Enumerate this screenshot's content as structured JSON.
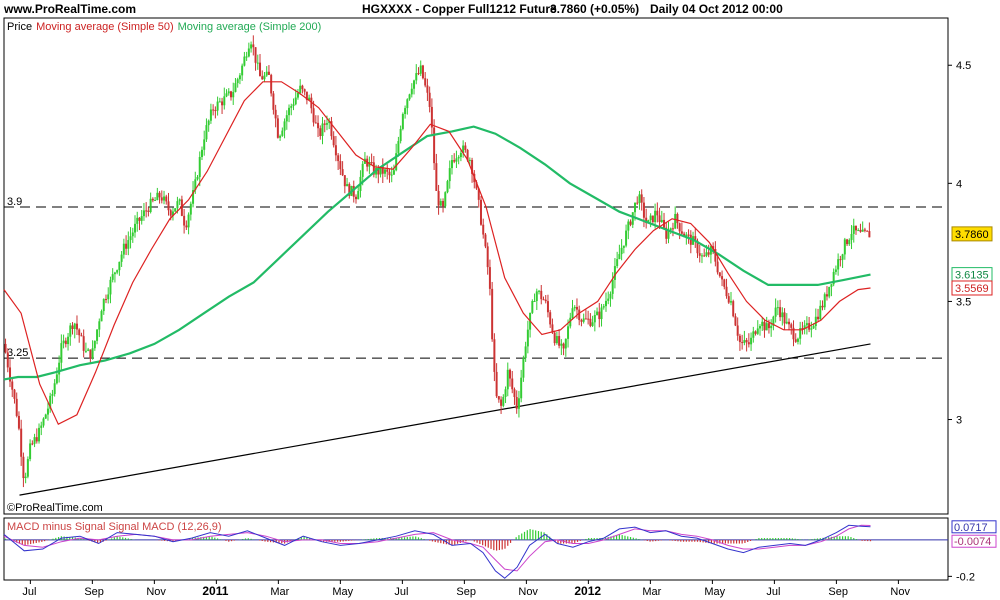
{
  "header": {
    "site": "www.ProRealTime.com",
    "title": "HGXXXX - Copper Full1212 Future",
    "quote": "3.7860 (+0.05%)",
    "period": "Daily  04 Oct 2012 00:00"
  },
  "legend": {
    "price": "Price",
    "ma50": "Moving average (Simple 50)",
    "ma200": "Moving average (Simple 200)"
  },
  "watermark": "©ProRealTime.com",
  "macd_legend": "MACD minus Signal Signal MACD (12,26,9)",
  "colors": {
    "candle_up": "#33cc33",
    "candle_down": "#cc3333",
    "ma50": "#dd2222",
    "ma200": "#22bb66",
    "macd": "#3333cc",
    "signal": "#cc44cc",
    "price_tag": "#ffdd00"
  },
  "chart_data": [
    {
      "type": "candlestick",
      "title": "HGXXXX - Copper Full1212 Future",
      "y_ticks": [
        "3",
        "3.5",
        "4",
        "4.5"
      ],
      "y_tick_values": [
        3,
        3.5,
        4,
        4.5
      ],
      "ylim": [
        2.6,
        4.7
      ],
      "x_ticks": [
        "Jul",
        "Sep",
        "Nov",
        "2011",
        "Mar",
        "May",
        "Jul",
        "Sep",
        "Nov",
        "2012",
        "Mar",
        "May",
        "Jul",
        "Sep",
        "Nov"
      ],
      "x_tick_months": [
        0,
        2,
        4,
        6,
        8,
        10,
        12,
        14,
        16,
        18,
        20,
        22,
        24,
        26,
        28
      ],
      "x_range_months": [
        -0.85,
        29.6
      ],
      "horizontal_lines": [
        {
          "label": "3.9",
          "value": 3.9
        },
        {
          "label": "3.25",
          "value": 3.26
        }
      ],
      "trendlines": [
        {
          "from": [
            -0.35,
            2.68
          ],
          "to": [
            27.1,
            3.32
          ]
        }
      ],
      "last_price": "3.7860",
      "last_price_value": 3.786,
      "ma200_last": "3.6135",
      "ma200_last_value": 3.6135,
      "ma50_last": "3.5569",
      "ma50_last_value": 3.5569,
      "close_path": [
        [
          -0.85,
          3.32
        ],
        [
          -0.4,
          3.0
        ],
        [
          -0.2,
          2.74
        ],
        [
          0.0,
          2.88
        ],
        [
          0.3,
          2.95
        ],
        [
          0.7,
          3.1
        ],
        [
          1.0,
          3.3
        ],
        [
          1.4,
          3.42
        ],
        [
          1.8,
          3.28
        ],
        [
          2.0,
          3.28
        ],
        [
          2.3,
          3.48
        ],
        [
          2.7,
          3.62
        ],
        [
          3.0,
          3.72
        ],
        [
          3.4,
          3.82
        ],
        [
          3.8,
          3.9
        ],
        [
          4.2,
          3.95
        ],
        [
          4.5,
          3.88
        ],
        [
          4.8,
          3.92
        ],
        [
          5.0,
          3.82
        ],
        [
          5.3,
          3.98
        ],
        [
          5.6,
          4.2
        ],
        [
          5.9,
          4.32
        ],
        [
          6.2,
          4.35
        ],
        [
          6.5,
          4.38
        ],
        [
          6.8,
          4.48
        ],
        [
          7.1,
          4.62
        ],
        [
          7.4,
          4.45
        ],
        [
          7.7,
          4.45
        ],
        [
          8.0,
          4.2
        ],
        [
          8.3,
          4.3
        ],
        [
          8.7,
          4.4
        ],
        [
          9.0,
          4.35
        ],
        [
          9.3,
          4.2
        ],
        [
          9.6,
          4.28
        ],
        [
          9.9,
          4.12
        ],
        [
          10.2,
          3.98
        ],
        [
          10.5,
          3.95
        ],
        [
          10.8,
          4.1
        ],
        [
          11.1,
          4.05
        ],
        [
          11.4,
          4.05
        ],
        [
          11.7,
          4.02
        ],
        [
          12.0,
          4.3
        ],
        [
          12.3,
          4.42
        ],
        [
          12.6,
          4.48
        ],
        [
          12.9,
          4.32
        ],
        [
          13.1,
          3.95
        ],
        [
          13.3,
          3.88
        ],
        [
          13.6,
          4.1
        ],
        [
          13.9,
          4.15
        ],
        [
          14.2,
          4.1
        ],
        [
          14.5,
          3.88
        ],
        [
          14.8,
          3.6
        ],
        [
          15.0,
          3.1
        ],
        [
          15.2,
          3.05
        ],
        [
          15.4,
          3.2
        ],
        [
          15.7,
          3.05
        ],
        [
          16.0,
          3.35
        ],
        [
          16.3,
          3.55
        ],
        [
          16.6,
          3.5
        ],
        [
          16.9,
          3.35
        ],
        [
          17.2,
          3.28
        ],
        [
          17.5,
          3.5
        ],
        [
          17.8,
          3.42
        ],
        [
          18.1,
          3.42
        ],
        [
          18.4,
          3.45
        ],
        [
          18.7,
          3.55
        ],
        [
          19.0,
          3.7
        ],
        [
          19.3,
          3.82
        ],
        [
          19.6,
          3.95
        ],
        [
          19.9,
          3.82
        ],
        [
          20.2,
          3.88
        ],
        [
          20.5,
          3.78
        ],
        [
          20.8,
          3.85
        ],
        [
          21.1,
          3.78
        ],
        [
          21.4,
          3.75
        ],
        [
          21.7,
          3.68
        ],
        [
          22.0,
          3.72
        ],
        [
          22.3,
          3.58
        ],
        [
          22.6,
          3.5
        ],
        [
          22.9,
          3.32
        ],
        [
          23.2,
          3.32
        ],
        [
          23.5,
          3.42
        ],
        [
          23.8,
          3.38
        ],
        [
          24.1,
          3.48
        ],
        [
          24.4,
          3.4
        ],
        [
          24.7,
          3.35
        ],
        [
          25.0,
          3.38
        ],
        [
          25.3,
          3.42
        ],
        [
          25.6,
          3.5
        ],
        [
          25.9,
          3.62
        ],
        [
          26.2,
          3.72
        ],
        [
          26.5,
          3.8
        ],
        [
          26.8,
          3.78
        ],
        [
          27.1,
          3.786
        ]
      ],
      "ma50_path": [
        [
          -0.85,
          3.55
        ],
        [
          -0.3,
          3.45
        ],
        [
          0.3,
          3.15
        ],
        [
          0.9,
          2.98
        ],
        [
          1.5,
          3.02
        ],
        [
          2.1,
          3.2
        ],
        [
          2.7,
          3.4
        ],
        [
          3.3,
          3.58
        ],
        [
          3.9,
          3.72
        ],
        [
          4.5,
          3.85
        ],
        [
          5.1,
          3.93
        ],
        [
          5.7,
          4.05
        ],
        [
          6.3,
          4.2
        ],
        [
          6.9,
          4.35
        ],
        [
          7.5,
          4.43
        ],
        [
          8.1,
          4.43
        ],
        [
          8.7,
          4.38
        ],
        [
          9.3,
          4.32
        ],
        [
          9.9,
          4.22
        ],
        [
          10.5,
          4.12
        ],
        [
          11.1,
          4.07
        ],
        [
          11.7,
          4.06
        ],
        [
          12.3,
          4.15
        ],
        [
          12.9,
          4.25
        ],
        [
          13.5,
          4.22
        ],
        [
          14.1,
          4.1
        ],
        [
          14.7,
          3.9
        ],
        [
          15.3,
          3.6
        ],
        [
          15.9,
          3.45
        ],
        [
          16.5,
          3.36
        ],
        [
          17.1,
          3.38
        ],
        [
          17.7,
          3.45
        ],
        [
          18.3,
          3.5
        ],
        [
          18.9,
          3.62
        ],
        [
          19.5,
          3.72
        ],
        [
          20.1,
          3.8
        ],
        [
          20.7,
          3.85
        ],
        [
          21.3,
          3.83
        ],
        [
          21.9,
          3.75
        ],
        [
          22.5,
          3.62
        ],
        [
          23.1,
          3.5
        ],
        [
          23.7,
          3.42
        ],
        [
          24.3,
          3.38
        ],
        [
          24.9,
          3.38
        ],
        [
          25.5,
          3.42
        ],
        [
          26.1,
          3.5
        ],
        [
          26.7,
          3.55
        ],
        [
          27.1,
          3.5569
        ]
      ],
      "ma200_path": [
        [
          -0.85,
          3.17
        ],
        [
          -0.4,
          3.18
        ],
        [
          0.2,
          3.18
        ],
        [
          0.8,
          3.2
        ],
        [
          1.6,
          3.23
        ],
        [
          2.4,
          3.25
        ],
        [
          3.2,
          3.28
        ],
        [
          4.0,
          3.32
        ],
        [
          4.8,
          3.38
        ],
        [
          5.6,
          3.45
        ],
        [
          6.4,
          3.52
        ],
        [
          7.2,
          3.58
        ],
        [
          8.0,
          3.68
        ],
        [
          8.8,
          3.78
        ],
        [
          9.6,
          3.88
        ],
        [
          10.4,
          3.97
        ],
        [
          11.2,
          4.06
        ],
        [
          12.0,
          4.13
        ],
        [
          12.8,
          4.2
        ],
        [
          13.6,
          4.22
        ],
        [
          14.3,
          4.24
        ],
        [
          15.0,
          4.21
        ],
        [
          15.8,
          4.15
        ],
        [
          16.6,
          4.08
        ],
        [
          17.4,
          4.0
        ],
        [
          18.2,
          3.94
        ],
        [
          19.0,
          3.88
        ],
        [
          19.8,
          3.84
        ],
        [
          20.6,
          3.8
        ],
        [
          21.4,
          3.76
        ],
        [
          22.2,
          3.7
        ],
        [
          23.0,
          3.63
        ],
        [
          23.8,
          3.57
        ],
        [
          24.6,
          3.57
        ],
        [
          25.4,
          3.57
        ],
        [
          26.2,
          3.59
        ],
        [
          27.1,
          3.6135
        ]
      ]
    },
    {
      "type": "line",
      "title": "MACD minus Signal Signal MACD (12,26,9)",
      "y_ticks": [
        "-0.2"
      ],
      "y_tick_values": [
        -0.2
      ],
      "ylim": [
        -0.22,
        0.12
      ],
      "zero_line": 0,
      "macd_last": "0.0717",
      "macd_last_value": 0.0717,
      "histogram_last": "-0.0074",
      "histogram_last_value": -0.0074,
      "macd_path": [
        [
          -0.85,
          0.03
        ],
        [
          -0.2,
          -0.06
        ],
        [
          0.4,
          -0.05
        ],
        [
          1.0,
          0.01
        ],
        [
          1.6,
          0.02
        ],
        [
          2.2,
          -0.02
        ],
        [
          2.8,
          0.04
        ],
        [
          3.4,
          0.03
        ],
        [
          4.0,
          0.02
        ],
        [
          4.6,
          -0.01
        ],
        [
          5.2,
          0.01
        ],
        [
          5.8,
          0.04
        ],
        [
          6.4,
          0.02
        ],
        [
          7.0,
          0.05
        ],
        [
          7.6,
          0.01
        ],
        [
          8.2,
          -0.03
        ],
        [
          8.8,
          0.02
        ],
        [
          9.4,
          -0.01
        ],
        [
          10.0,
          -0.03
        ],
        [
          10.6,
          -0.02
        ],
        [
          11.2,
          0.0
        ],
        [
          11.8,
          0.02
        ],
        [
          12.4,
          0.05
        ],
        [
          13.0,
          0.03
        ],
        [
          13.6,
          -0.03
        ],
        [
          14.2,
          -0.02
        ],
        [
          14.6,
          -0.07
        ],
        [
          15.0,
          -0.17
        ],
        [
          15.3,
          -0.21
        ],
        [
          15.7,
          -0.15
        ],
        [
          16.1,
          -0.03
        ],
        [
          16.6,
          0.03
        ],
        [
          17.0,
          -0.02
        ],
        [
          17.5,
          -0.04
        ],
        [
          18.0,
          -0.01
        ],
        [
          18.5,
          0.01
        ],
        [
          19.0,
          0.06
        ],
        [
          19.5,
          0.07
        ],
        [
          20.0,
          0.04
        ],
        [
          20.5,
          0.05
        ],
        [
          21.0,
          0.02
        ],
        [
          21.5,
          0.01
        ],
        [
          22.0,
          -0.02
        ],
        [
          22.5,
          -0.05
        ],
        [
          23.0,
          -0.07
        ],
        [
          23.5,
          -0.04
        ],
        [
          24.0,
          -0.03
        ],
        [
          24.5,
          -0.02
        ],
        [
          25.0,
          -0.03
        ],
        [
          25.5,
          0.0
        ],
        [
          26.0,
          0.04
        ],
        [
          26.4,
          0.08
        ],
        [
          26.8,
          0.075
        ],
        [
          27.1,
          0.0717
        ]
      ],
      "signal_path": [
        [
          -0.85,
          0.02
        ],
        [
          -0.2,
          -0.03
        ],
        [
          0.4,
          -0.04
        ],
        [
          1.0,
          -0.01
        ],
        [
          1.6,
          0.01
        ],
        [
          2.2,
          0.0
        ],
        [
          2.8,
          0.02
        ],
        [
          3.4,
          0.03
        ],
        [
          4.0,
          0.02
        ],
        [
          4.6,
          0.0
        ],
        [
          5.2,
          0.0
        ],
        [
          5.8,
          0.02
        ],
        [
          6.4,
          0.03
        ],
        [
          7.0,
          0.04
        ],
        [
          7.6,
          0.02
        ],
        [
          8.2,
          -0.01
        ],
        [
          8.8,
          0.0
        ],
        [
          9.4,
          0.0
        ],
        [
          10.0,
          -0.02
        ],
        [
          10.6,
          -0.02
        ],
        [
          11.2,
          -0.01
        ],
        [
          11.8,
          0.01
        ],
        [
          12.4,
          0.03
        ],
        [
          13.0,
          0.04
        ],
        [
          13.6,
          0.0
        ],
        [
          14.2,
          -0.02
        ],
        [
          14.6,
          -0.04
        ],
        [
          15.0,
          -0.11
        ],
        [
          15.3,
          -0.16
        ],
        [
          15.7,
          -0.17
        ],
        [
          16.1,
          -0.09
        ],
        [
          16.6,
          -0.01
        ],
        [
          17.0,
          0.0
        ],
        [
          17.5,
          -0.02
        ],
        [
          18.0,
          -0.02
        ],
        [
          18.5,
          0.0
        ],
        [
          19.0,
          0.03
        ],
        [
          19.5,
          0.06
        ],
        [
          20.0,
          0.05
        ],
        [
          20.5,
          0.05
        ],
        [
          21.0,
          0.03
        ],
        [
          21.5,
          0.02
        ],
        [
          22.0,
          0.0
        ],
        [
          22.5,
          -0.03
        ],
        [
          23.0,
          -0.05
        ],
        [
          23.5,
          -0.05
        ],
        [
          24.0,
          -0.04
        ],
        [
          24.5,
          -0.03
        ],
        [
          25.0,
          -0.03
        ],
        [
          25.5,
          -0.01
        ],
        [
          26.0,
          0.02
        ],
        [
          26.4,
          0.06
        ],
        [
          26.8,
          0.08
        ],
        [
          27.1,
          0.079
        ]
      ]
    }
  ]
}
